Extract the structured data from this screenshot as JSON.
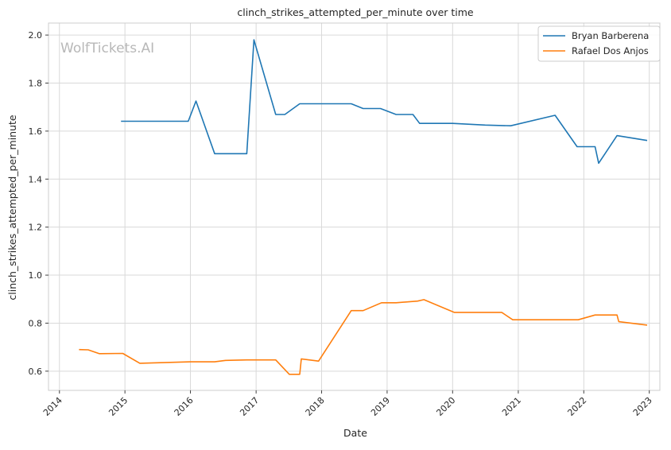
{
  "watermark": "WolfTickets.AI",
  "chart_data": {
    "type": "line",
    "title": "clinch_strikes_attempted_per_minute over time",
    "xlabel": "Date",
    "ylabel": "clinch_strikes_attempted_per_minute",
    "xlim": [
      "2013-11-01",
      "2023-03-01"
    ],
    "ylim": [
      0.52,
      2.05
    ],
    "x_ticks": [
      "2014-01-01",
      "2015-01-01",
      "2016-01-01",
      "2017-01-01",
      "2018-01-01",
      "2019-01-01",
      "2020-01-01",
      "2021-01-01",
      "2022-01-01",
      "2023-01-01"
    ],
    "x_tick_labels": [
      "2014",
      "2015",
      "2016",
      "2017",
      "2018",
      "2019",
      "2020",
      "2021",
      "2022",
      "2023"
    ],
    "y_ticks": [
      0.6,
      0.8,
      1.0,
      1.2,
      1.4,
      1.6,
      1.8,
      2.0
    ],
    "y_tick_labels": [
      "0.6",
      "0.8",
      "1.0",
      "1.2",
      "1.4",
      "1.6",
      "1.8",
      "2.0"
    ],
    "grid": true,
    "legend_position": "top-right",
    "series": [
      {
        "name": "Bryan Barberena",
        "color": "#1f77b4",
        "points": [
          [
            "2014-12-10",
            1.641
          ],
          [
            "2015-12-20",
            1.641
          ],
          [
            "2016-02-01",
            1.725
          ],
          [
            "2016-05-15",
            1.506
          ],
          [
            "2016-11-10",
            1.506
          ],
          [
            "2016-12-20",
            1.98
          ],
          [
            "2017-04-20",
            1.669
          ],
          [
            "2017-06-10",
            1.669
          ],
          [
            "2017-09-01",
            1.714
          ],
          [
            "2018-06-15",
            1.714
          ],
          [
            "2018-08-20",
            1.694
          ],
          [
            "2018-11-25",
            1.694
          ],
          [
            "2019-02-20",
            1.669
          ],
          [
            "2019-05-25",
            1.669
          ],
          [
            "2019-07-01",
            1.632
          ],
          [
            "2020-01-01",
            1.632
          ],
          [
            "2020-07-01",
            1.625
          ],
          [
            "2020-11-20",
            1.622
          ],
          [
            "2021-07-25",
            1.666
          ],
          [
            "2021-11-25",
            1.535
          ],
          [
            "2022-03-05",
            1.535
          ],
          [
            "2022-03-25",
            1.466
          ],
          [
            "2022-07-05",
            1.581
          ],
          [
            "2022-12-20",
            1.561
          ]
        ]
      },
      {
        "name": "Rafael Dos Anjos",
        "color": "#ff7f0e",
        "points": [
          [
            "2014-04-20",
            0.69
          ],
          [
            "2014-06-10",
            0.689
          ],
          [
            "2014-08-10",
            0.673
          ],
          [
            "2014-12-20",
            0.674
          ],
          [
            "2015-03-25",
            0.633
          ],
          [
            "2016-01-01",
            0.639
          ],
          [
            "2016-05-15",
            0.639
          ],
          [
            "2016-07-15",
            0.645
          ],
          [
            "2016-11-10",
            0.647
          ],
          [
            "2017-04-20",
            0.647
          ],
          [
            "2017-07-05",
            0.587
          ],
          [
            "2017-09-01",
            0.587
          ],
          [
            "2017-09-10",
            0.651
          ],
          [
            "2017-12-15",
            0.642
          ],
          [
            "2018-06-15",
            0.852
          ],
          [
            "2018-08-20",
            0.852
          ],
          [
            "2018-12-01",
            0.885
          ],
          [
            "2019-02-20",
            0.885
          ],
          [
            "2019-06-20",
            0.892
          ],
          [
            "2019-07-25",
            0.898
          ],
          [
            "2020-01-10",
            0.845
          ],
          [
            "2020-10-01",
            0.845
          ],
          [
            "2020-12-01",
            0.814
          ],
          [
            "2021-12-01",
            0.814
          ],
          [
            "2022-03-05",
            0.834
          ],
          [
            "2022-07-05",
            0.834
          ],
          [
            "2022-07-15",
            0.806
          ],
          [
            "2022-12-20",
            0.792
          ]
        ]
      }
    ]
  }
}
